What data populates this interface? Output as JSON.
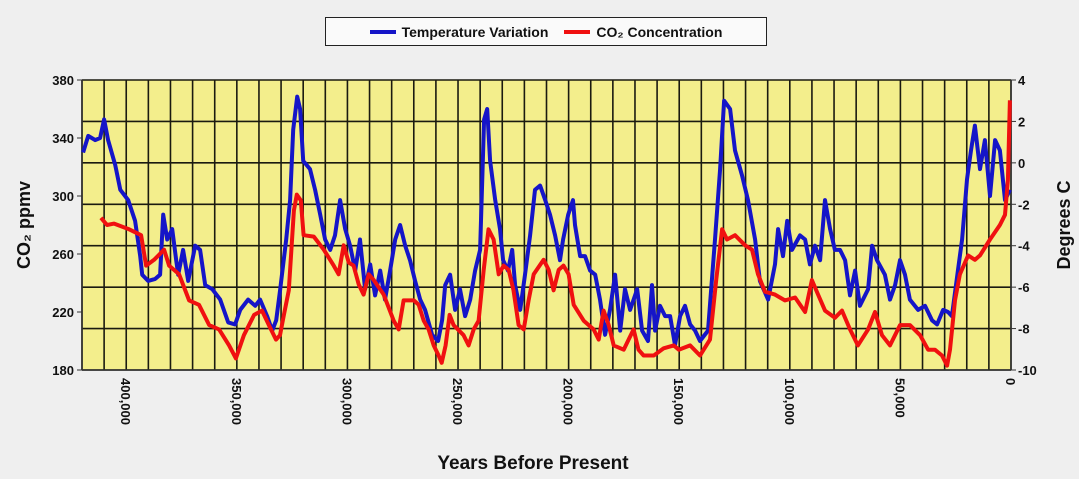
{
  "chart_data": {
    "type": "line",
    "title": "",
    "xlabel": "Years Before Present",
    "ylabel_left": "CO₂ ppmv",
    "ylabel_right": "Degrees C",
    "xlim": [
      420000,
      0
    ],
    "ylim_left": [
      180,
      380
    ],
    "ylim_right": [
      -10,
      4
    ],
    "x_ticks": [
      400000,
      350000,
      300000,
      250000,
      200000,
      150000,
      100000,
      50000,
      0
    ],
    "x_tick_labels": [
      "400,000",
      "350,000",
      "300,000",
      "250,000",
      "200,000",
      "150,000",
      "100,000",
      "50,000",
      "0"
    ],
    "y_left_ticks": [
      "380",
      "340",
      "300",
      "260",
      "220",
      "180"
    ],
    "y_right_ticks": [
      "4",
      "2",
      "0",
      "-2",
      "-4",
      "-6",
      "-8",
      "-10"
    ],
    "grid": true,
    "legend_position": "top-center",
    "colors": {
      "temperature": "#1515c8",
      "co2": "#f01010",
      "plot_bg": "#f3ee8c",
      "grid": "#1a1a10"
    },
    "series": [
      {
        "name": "Temperature Variation",
        "axis": "right",
        "unit": "degrees C",
        "color": "#1515c8",
        "x_kyr": [
          419.5,
          417.2,
          414.0,
          411.8,
          410.0,
          408.2,
          405.0,
          402.7,
          399.1,
          396.0,
          393.7,
          392.8,
          390.1,
          386.9,
          384.7,
          383.3,
          381.5,
          379.2,
          377.4,
          376.5,
          374.3,
          372.0,
          368.8,
          366.6,
          364.3,
          361.1,
          357.5,
          353.9,
          350.8,
          348.5,
          344.9,
          341.7,
          339.5,
          336.3,
          334.0,
          332.2,
          330.4,
          327.7,
          325.9,
          324.5,
          322.7,
          321.4,
          320.0,
          316.9,
          314.6,
          312.3,
          310.1,
          307.8,
          305.6,
          303.3,
          301.0,
          298.8,
          296.5,
          294.3,
          292.0,
          289.7,
          287.5,
          285.2,
          283.0,
          280.7,
          278.4,
          276.2,
          273.9,
          271.7,
          269.4,
          267.1,
          264.9,
          261.7,
          259.0,
          257.2,
          255.8,
          253.6,
          251.3,
          249.1,
          246.8,
          244.5,
          242.3,
          240.0,
          238.2,
          236.8,
          235.5,
          233.2,
          231.0,
          229.6,
          227.4,
          225.5,
          224.2,
          221.9,
          219.7,
          217.4,
          215.2,
          212.9,
          210.6,
          208.4,
          206.1,
          203.9,
          202.5,
          200.2,
          198.0,
          197.1,
          194.8,
          192.6,
          190.3,
          188.0,
          185.8,
          183.5,
          181.3,
          179.0,
          176.7,
          174.5,
          172.2,
          169.0,
          166.8,
          164.1,
          162.3,
          160.9,
          158.7,
          156.4,
          154.1,
          151.9,
          149.6,
          147.4,
          145.1,
          142.8,
          140.6,
          137.0,
          133.8,
          131.5,
          129.7,
          127.0,
          124.8,
          121.6,
          118.9,
          115.7,
          113.5,
          109.8,
          106.7,
          105.3,
          103.1,
          101.2,
          99.0,
          95.4,
          93.1,
          90.9,
          88.6,
          86.3,
          84.1,
          81.8,
          79.6,
          77.3,
          75.0,
          72.8,
          70.5,
          68.3,
          64.6,
          62.8,
          60.6,
          57.0,
          54.7,
          52.4,
          50.2,
          47.9,
          45.7,
          42.0,
          38.9,
          35.7,
          33.4,
          30.7,
          28.5,
          26.7,
          24.0,
          22.1,
          19.9,
          18.1,
          16.3,
          14.0,
          11.8,
          9.5,
          7.2,
          5.0,
          2.7,
          0.5
        ],
        "values": [
          0.5,
          1.3,
          1.1,
          1.2,
          2.1,
          1.1,
          -0.1,
          -1.3,
          -1.8,
          -2.8,
          -4.5,
          -5.4,
          -5.7,
          -5.6,
          -5.4,
          -2.5,
          -3.7,
          -3.2,
          -4.7,
          -5.4,
          -4.2,
          -5.7,
          -4.0,
          -4.2,
          -5.9,
          -6.1,
          -6.6,
          -7.7,
          -7.8,
          -7.1,
          -6.6,
          -6.9,
          -6.6,
          -7.4,
          -8.1,
          -7.6,
          -6.1,
          -3.7,
          -1.8,
          1.6,
          3.2,
          2.6,
          0.1,
          -0.3,
          -1.3,
          -2.5,
          -3.7,
          -4.2,
          -3.5,
          -1.8,
          -3.2,
          -4.0,
          -5.2,
          -3.7,
          -6.1,
          -4.9,
          -6.4,
          -5.2,
          -6.6,
          -5.2,
          -3.7,
          -3.0,
          -4.0,
          -4.7,
          -5.7,
          -6.6,
          -7.1,
          -8.3,
          -8.6,
          -7.6,
          -5.9,
          -5.4,
          -7.1,
          -6.1,
          -7.4,
          -6.6,
          -5.2,
          -4.2,
          2.1,
          2.6,
          0.1,
          -1.8,
          -3.2,
          -4.7,
          -5.2,
          -4.2,
          -5.9,
          -7.1,
          -5.4,
          -3.5,
          -1.3,
          -1.1,
          -1.8,
          -2.5,
          -3.5,
          -4.7,
          -3.7,
          -2.5,
          -1.8,
          -3.0,
          -4.5,
          -4.5,
          -5.2,
          -5.4,
          -6.6,
          -8.3,
          -7.1,
          -5.4,
          -8.1,
          -6.1,
          -7.1,
          -6.1,
          -8.1,
          -8.6,
          -5.9,
          -8.1,
          -6.9,
          -7.4,
          -7.4,
          -8.8,
          -7.4,
          -6.9,
          -7.8,
          -8.1,
          -8.6,
          -8.1,
          -3.7,
          -0.3,
          3.0,
          2.6,
          0.6,
          -0.6,
          -1.8,
          -3.7,
          -5.7,
          -6.6,
          -4.9,
          -3.2,
          -4.5,
          -2.8,
          -4.2,
          -3.5,
          -3.7,
          -4.9,
          -4.0,
          -4.7,
          -1.8,
          -3.2,
          -4.2,
          -4.2,
          -4.7,
          -6.4,
          -5.2,
          -6.9,
          -6.1,
          -4.0,
          -4.7,
          -5.4,
          -6.6,
          -5.9,
          -4.7,
          -5.4,
          -6.6,
          -7.1,
          -6.9,
          -7.6,
          -7.8,
          -7.1,
          -7.2,
          -7.4,
          -5.2,
          -3.7,
          -0.8,
          0.6,
          1.8,
          -0.3,
          1.1,
          -1.6,
          1.1,
          0.6,
          -1.8,
          -1.3
        ]
      },
      {
        "name": "CO₂ Concentration",
        "axis": "left",
        "unit": "ppmv",
        "color": "#f01010",
        "x_kyr": [
          411.4,
          408.7,
          405.5,
          398.7,
          393.3,
          391.0,
          387.4,
          382.9,
          380.6,
          376.1,
          371.6,
          367.1,
          362.5,
          358.0,
          353.5,
          350.4,
          346.8,
          342.2,
          338.6,
          335.5,
          332.3,
          330.5,
          328.7,
          326.5,
          324.2,
          322.9,
          321.1,
          319.8,
          315.2,
          310.7,
          306.2,
          304.0,
          301.7,
          299.4,
          297.2,
          294.9,
          292.7,
          290.4,
          288.1,
          283.6,
          279.1,
          276.8,
          274.6,
          270.0,
          267.8,
          265.5,
          263.3,
          261.0,
          258.8,
          257.4,
          255.6,
          253.8,
          252.0,
          247.5,
          245.2,
          242.9,
          240.7,
          238.4,
          236.2,
          233.9,
          231.6,
          229.4,
          227.1,
          224.9,
          222.6,
          220.3,
          218.1,
          215.8,
          211.3,
          209.0,
          206.8,
          204.5,
          202.3,
          200.0,
          197.7,
          193.2,
          188.7,
          186.4,
          184.2,
          181.9,
          179.6,
          175.1,
          172.9,
          170.6,
          168.4,
          166.1,
          161.5,
          157.0,
          152.5,
          150.2,
          145.1,
          140.6,
          136.1,
          133.3,
          130.6,
          128.4,
          124.8,
          120.2,
          117.1,
          114.4,
          111.2,
          106.7,
          102.2,
          97.6,
          93.1,
          90.0,
          87.2,
          84.1,
          79.6,
          76.4,
          72.8,
          69.2,
          64.6,
          61.5,
          58.3,
          54.7,
          50.2,
          45.7,
          41.1,
          37.5,
          34.4,
          31.2,
          28.9,
          27.6,
          25.3,
          23.1,
          19.4,
          16.3,
          14.0,
          9.5,
          5.0,
          2.7,
          1.4,
          0.5
        ],
        "values": [
          285,
          280,
          281,
          277,
          273,
          252,
          256,
          263,
          252,
          246,
          228,
          225,
          211,
          208,
          197,
          188,
          204,
          218,
          221,
          211,
          201,
          204,
          218,
          235,
          290,
          301,
          297,
          273,
          272,
          263,
          252,
          246,
          266,
          254,
          252,
          239,
          232,
          246,
          242,
          232,
          214,
          208,
          228,
          228,
          225,
          214,
          208,
          197,
          190,
          185,
          197,
          218,
          211,
          204,
          197,
          208,
          214,
          249,
          277,
          270,
          246,
          252,
          249,
          235,
          211,
          208,
          228,
          246,
          256,
          249,
          235,
          249,
          252,
          246,
          225,
          214,
          208,
          201,
          221,
          211,
          197,
          194,
          201,
          208,
          194,
          190,
          190,
          195,
          197,
          194,
          197,
          190,
          201,
          242,
          277,
          270,
          273,
          266,
          263,
          246,
          234,
          232,
          228,
          230,
          220,
          242,
          232,
          221,
          216,
          221,
          208,
          197,
          208,
          220,
          204,
          197,
          211,
          211,
          204,
          194,
          194,
          190,
          183,
          194,
          228,
          246,
          259,
          256,
          259,
          270,
          280,
          287,
          311,
          366
        ]
      }
    ]
  },
  "legend": {
    "temperature_label": "Temperature Variation",
    "co2_label": "CO₂ Concentration"
  },
  "axes": {
    "left_title": "CO₂ ppmv",
    "right_title": "Degrees C",
    "x_title": "Years Before Present"
  }
}
